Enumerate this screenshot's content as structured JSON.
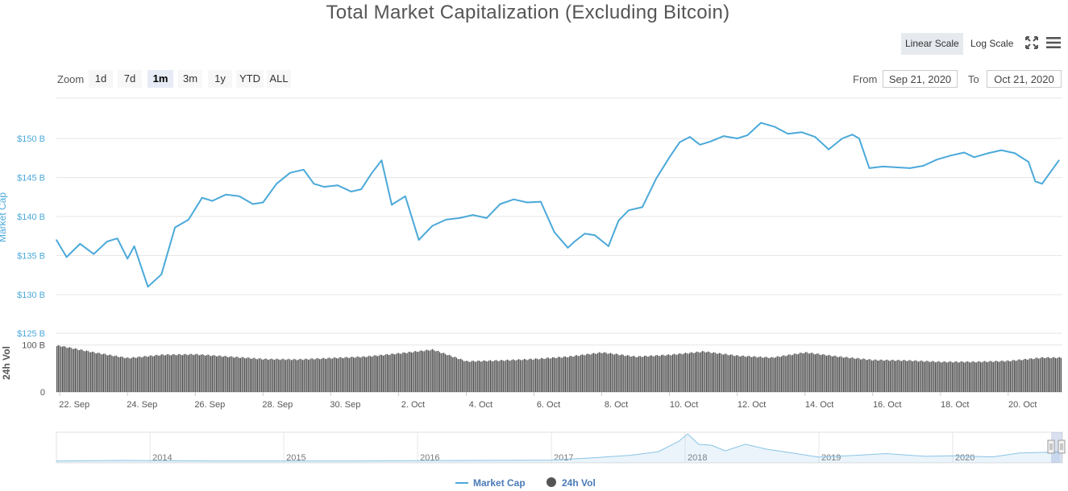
{
  "title": "Total Market Capitalization (Excluding Bitcoin)",
  "toolbar": {
    "linear_scale": "Linear Scale",
    "log_scale": "Log Scale",
    "fullscreen_icon": "fullscreen-icon",
    "menu_icon": "hamburger-menu-icon"
  },
  "zoom": {
    "label": "Zoom",
    "buttons": [
      "1d",
      "7d",
      "1m",
      "3m",
      "1y",
      "YTD",
      "ALL"
    ],
    "active": "1m"
  },
  "range": {
    "from_label": "From",
    "from_value": "Sep 21, 2020",
    "to_label": "To",
    "to_value": "Oct 21, 2020"
  },
  "legend": {
    "market_cap": "Market Cap",
    "volume": "24h Vol"
  },
  "colors": {
    "market_cap": "#4ba9d9",
    "volume": "#4a4a4a",
    "navigator": "#8cc4e6",
    "axis_text": "#4ba9d9"
  },
  "chart_data": [
    {
      "type": "line",
      "series": [
        {
          "name": "Market Cap",
          "x": [
            21.9,
            22.2,
            22.6,
            23.0,
            23.4,
            23.7,
            24.0,
            24.2,
            24.6,
            25.0,
            25.4,
            25.8,
            26.2,
            26.5,
            26.9,
            27.3,
            27.7,
            28.0,
            28.4,
            28.8,
            29.2,
            29.5,
            29.8,
            30.2,
            30.6,
            30.9,
            31.2,
            31.5,
            31.8,
            32.2,
            32.6,
            33.0,
            33.4,
            33.8,
            34.2,
            34.6,
            35.0,
            35.4,
            35.8,
            36.2,
            36.6,
            37.0,
            37.2,
            37.5,
            37.8,
            38.2,
            38.5,
            38.8,
            39.2,
            39.6,
            40.0,
            40.3,
            40.6,
            40.9,
            41.2,
            41.6,
            42.0,
            42.3,
            42.7,
            43.1,
            43.5,
            43.9,
            44.3,
            44.7,
            45.1,
            45.4,
            45.6,
            45.9,
            46.3,
            46.7,
            47.1,
            47.5,
            47.9,
            48.3,
            48.7,
            49.0,
            49.4,
            49.8,
            50.2,
            50.6,
            50.8,
            51.0,
            51.5
          ],
          "values": [
            137.0,
            134.8,
            136.5,
            135.2,
            136.8,
            137.2,
            134.6,
            136.2,
            131.0,
            132.6,
            138.6,
            139.6,
            142.4,
            142.0,
            142.8,
            142.6,
            141.6,
            141.8,
            144.2,
            145.6,
            146.0,
            144.2,
            143.8,
            144.0,
            143.2,
            143.5,
            145.5,
            147.2,
            141.5,
            142.6,
            137.0,
            138.8,
            139.6,
            139.8,
            140.2,
            139.8,
            141.6,
            142.2,
            141.8,
            141.9,
            138.0,
            136.0,
            136.8,
            137.8,
            137.6,
            136.2,
            139.5,
            140.8,
            141.2,
            144.8,
            147.6,
            149.5,
            150.2,
            149.2,
            149.6,
            150.3,
            150.0,
            150.4,
            152.0,
            151.5,
            150.6,
            150.8,
            150.2,
            148.6,
            150.0,
            150.5,
            150.0,
            146.2,
            146.4,
            146.3,
            146.2,
            146.5,
            147.3,
            147.8,
            148.2,
            147.6,
            148.1,
            148.5,
            148.1,
            147.0,
            144.5,
            144.2,
            147.2
          ]
        }
      ],
      "xlabel": "",
      "x_ticks": [
        "22. Sep",
        "24. Sep",
        "26. Sep",
        "28. Sep",
        "30. Sep",
        "2. Oct",
        "4. Oct",
        "6. Oct",
        "8. Oct",
        "10. Oct",
        "12. Oct",
        "14. Oct",
        "16. Oct",
        "18. Oct",
        "20. Oct"
      ],
      "y_ticks": [
        "$130 B",
        "$135 B",
        "$140 B",
        "$145 B",
        "$150 B"
      ],
      "ylabel": "Market Cap",
      "ylim": [
        130,
        155
      ],
      "grid": true
    },
    {
      "type": "bar",
      "series": [
        {
          "name": "24h Vol",
          "x": [
            22,
            23,
            24,
            25,
            26,
            27,
            28,
            29,
            30,
            31,
            32,
            33,
            34,
            35,
            36,
            37,
            38,
            39,
            40,
            41,
            42,
            43,
            44,
            45,
            46,
            47,
            48,
            49,
            50,
            51
          ],
          "values": [
            98,
            84,
            72,
            79,
            80,
            75,
            70,
            69,
            72,
            75,
            82,
            90,
            65,
            67,
            70,
            75,
            84,
            75,
            79,
            86,
            77,
            73,
            84,
            75,
            68,
            67,
            64,
            64,
            66,
            73
          ]
        }
      ],
      "y_ticks": [
        "0",
        "100 B",
        "$125 B"
      ],
      "ylabel": "24h Vol",
      "ylim": [
        0,
        125
      ]
    },
    {
      "type": "area",
      "series": [
        {
          "name": "navigator",
          "x": [
            2013.3,
            2013.8,
            2014.0,
            2014.5,
            2015.0,
            2015.5,
            2016.0,
            2016.5,
            2017.0,
            2017.3,
            2017.6,
            2017.8,
            2017.95,
            2018.02,
            2018.1,
            2018.2,
            2018.3,
            2018.45,
            2018.6,
            2018.8,
            2019.0,
            2019.3,
            2019.5,
            2019.8,
            2020.0,
            2020.3,
            2020.5,
            2020.8
          ],
          "values": [
            0.01,
            0.03,
            0.02,
            0.01,
            0.01,
            0.01,
            0.02,
            0.03,
            0.04,
            0.12,
            0.22,
            0.35,
            0.72,
            1.0,
            0.62,
            0.58,
            0.38,
            0.62,
            0.45,
            0.3,
            0.15,
            0.22,
            0.28,
            0.18,
            0.2,
            0.16,
            0.3,
            0.34
          ]
        }
      ],
      "x_ticks": [
        "2014",
        "2015",
        "2016",
        "2017",
        "2018",
        "2019",
        "2020"
      ]
    }
  ]
}
